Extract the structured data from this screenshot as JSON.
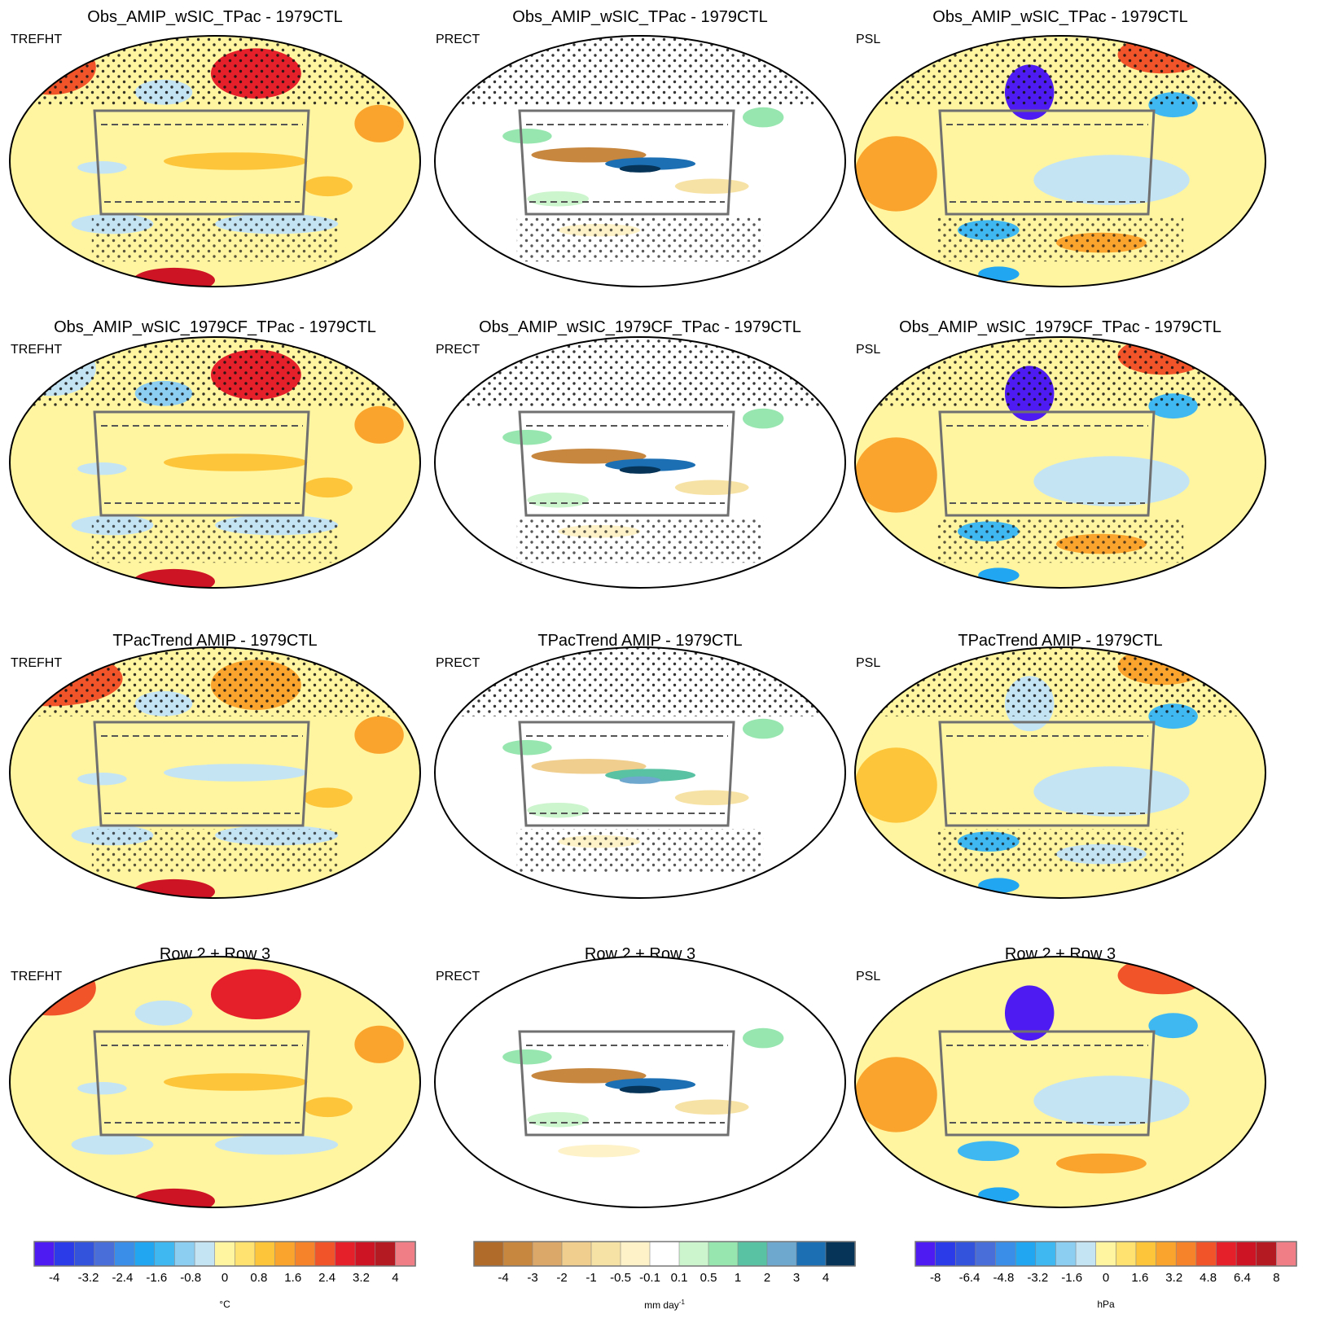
{
  "chart_data": {
    "type": "heatmap",
    "description_level": "multi-panel global map anomalies",
    "rows": [
      {
        "titles": [
          "Obs_AMIP_wSIC_TPac - 1979CTL",
          "Obs_AMIP_wSIC_TPac - 1979CTL",
          "Obs_AMIP_wSIC_TPac - 1979CTL"
        ]
      },
      {
        "titles": [
          "Obs_AMIP_wSIC_1979CF_TPac - 1979CTL",
          "Obs_AMIP_wSIC_1979CF_TPac - 1979CTL",
          "Obs_AMIP_wSIC_1979CF_TPac - 1979CTL"
        ]
      },
      {
        "titles": [
          "TPacTrend AMIP - 1979CTL",
          "TPacTrend AMIP - 1979CTL",
          "TPacTrend AMIP - 1979CTL"
        ]
      },
      {
        "titles": [
          "Row 2 + Row 3",
          "Row 2 + Row 3",
          "Row 2 + Row 3"
        ]
      }
    ],
    "variables": [
      "TREFHT",
      "PRECT",
      "PSL"
    ],
    "colorbars": [
      {
        "variable": "TREFHT",
        "unit_main": "°C",
        "unit_sup": "",
        "tick_labels": [
          "-4",
          "-3.2",
          "-2.4",
          "-1.6",
          "-0.8",
          "0",
          "0.8",
          "1.6",
          "2.4",
          "3.2",
          "4"
        ],
        "colors": [
          "#4e1cf2",
          "#2b3be8",
          "#3453dd",
          "#4a6ed9",
          "#3b8ee8",
          "#21a6f2",
          "#3fb8f2",
          "#8ccdf2",
          "#c4e4f4",
          "#fff5a0",
          "#ffe270",
          "#fdc53a",
          "#fba42d",
          "#f6832a",
          "#f2542a",
          "#e6202a",
          "#cc1424",
          "#b31a22",
          "#f07e86"
        ]
      },
      {
        "variable": "PRECT",
        "unit_main": "mm day",
        "unit_sup": "-1",
        "tick_labels": [
          "-4",
          "-3",
          "-2",
          "-1",
          "-0.5",
          "-0.1",
          "0.1",
          "0.5",
          "1",
          "2",
          "3",
          "4"
        ],
        "colors": [
          "#b06a2a",
          "#c8873e",
          "#dba86a",
          "#f0cf8e",
          "#f7e2a6",
          "#fdf2c8",
          "#ffffff",
          "#cdf5cd",
          "#97e6b0",
          "#58c2a2",
          "#6fa8cf",
          "#1c6fb3",
          "#053458"
        ]
      },
      {
        "variable": "PSL",
        "unit_main": "hPa",
        "unit_sup": "",
        "tick_labels": [
          "-8",
          "-6.4",
          "-4.8",
          "-3.2",
          "-1.6",
          "0",
          "1.6",
          "3.2",
          "4.8",
          "6.4",
          "8"
        ],
        "colors": [
          "#4e1cf2",
          "#2b3be8",
          "#3453dd",
          "#4a6ed9",
          "#3b8ee8",
          "#21a6f2",
          "#3fb8f2",
          "#8ccdf2",
          "#c4e4f4",
          "#fff5a0",
          "#ffe270",
          "#fdc53a",
          "#fba42d",
          "#f6832a",
          "#f2542a",
          "#e6202a",
          "#cc1424",
          "#b31a22",
          "#f07e86"
        ]
      }
    ],
    "legend_placement": "bottom",
    "stippling": "dots mark regions not statistically significant"
  }
}
